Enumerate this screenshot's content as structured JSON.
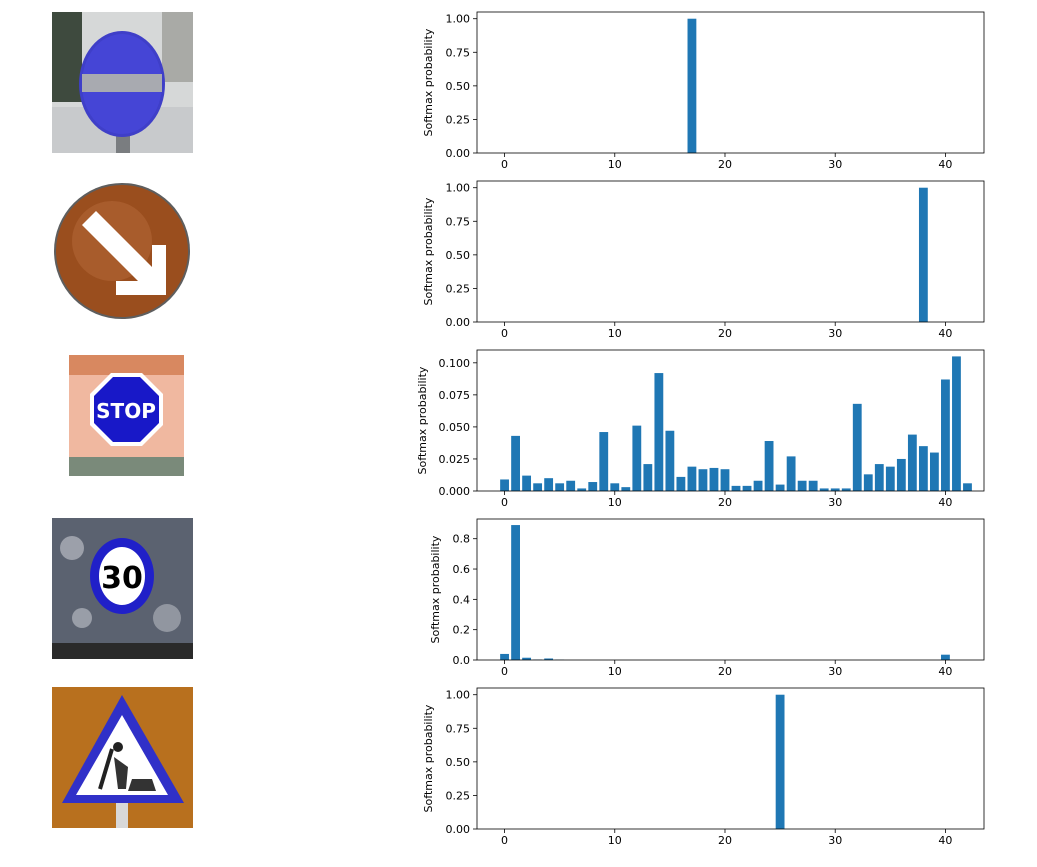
{
  "bar_color": "#1f77b4",
  "thumbnails": [
    {
      "icon": "no-entry-sign-icon"
    },
    {
      "icon": "keep-right-arrow-sign-icon"
    },
    {
      "icon": "stop-sign-icon"
    },
    {
      "icon": "speed-limit-30-sign-icon",
      "text": "30"
    },
    {
      "icon": "road-work-sign-icon"
    }
  ],
  "chart_data": [
    {
      "type": "bar",
      "ylabel": "Softmax probability",
      "xlim": [
        -2.5,
        43.5
      ],
      "xticks": [
        0,
        10,
        20,
        30,
        40
      ],
      "ylim": [
        0,
        1.05
      ],
      "yticks": [
        0,
        0.25,
        0.5,
        0.75,
        1.0
      ],
      "yticklabels": [
        "0.00",
        "0.25",
        "0.50",
        "0.75",
        "1.00"
      ],
      "x": [
        0,
        1,
        2,
        3,
        4,
        5,
        6,
        7,
        8,
        9,
        10,
        11,
        12,
        13,
        14,
        15,
        16,
        17,
        18,
        19,
        20,
        21,
        22,
        23,
        24,
        25,
        26,
        27,
        28,
        29,
        30,
        31,
        32,
        33,
        34,
        35,
        36,
        37,
        38,
        39,
        40,
        41,
        42
      ],
      "values": [
        0,
        0,
        0,
        0,
        0,
        0,
        0,
        0,
        0,
        0,
        0,
        0,
        0,
        0,
        0,
        0,
        0,
        1.0,
        0,
        0,
        0,
        0,
        0,
        0,
        0,
        0,
        0,
        0,
        0,
        0,
        0,
        0,
        0,
        0,
        0,
        0,
        0,
        0,
        0,
        0,
        0,
        0,
        0
      ]
    },
    {
      "type": "bar",
      "ylabel": "Softmax probability",
      "xlim": [
        -2.5,
        43.5
      ],
      "xticks": [
        0,
        10,
        20,
        30,
        40
      ],
      "ylim": [
        0,
        1.05
      ],
      "yticks": [
        0,
        0.25,
        0.5,
        0.75,
        1.0
      ],
      "yticklabels": [
        "0.00",
        "0.25",
        "0.50",
        "0.75",
        "1.00"
      ],
      "x": [
        0,
        1,
        2,
        3,
        4,
        5,
        6,
        7,
        8,
        9,
        10,
        11,
        12,
        13,
        14,
        15,
        16,
        17,
        18,
        19,
        20,
        21,
        22,
        23,
        24,
        25,
        26,
        27,
        28,
        29,
        30,
        31,
        32,
        33,
        34,
        35,
        36,
        37,
        38,
        39,
        40,
        41,
        42
      ],
      "values": [
        0,
        0,
        0,
        0,
        0,
        0,
        0,
        0,
        0,
        0,
        0,
        0,
        0,
        0,
        0,
        0,
        0,
        0,
        0,
        0,
        0,
        0,
        0,
        0,
        0,
        0,
        0,
        0,
        0,
        0,
        0,
        0,
        0,
        0,
        0,
        0,
        0,
        0,
        1.0,
        0,
        0,
        0,
        0
      ]
    },
    {
      "type": "bar",
      "ylabel": "Softmax probability",
      "xlim": [
        -2.5,
        43.5
      ],
      "xticks": [
        0,
        10,
        20,
        30,
        40
      ],
      "ylim": [
        0,
        0.11
      ],
      "yticks": [
        0,
        0.025,
        0.05,
        0.075,
        0.1
      ],
      "yticklabels": [
        "0.000",
        "0.025",
        "0.050",
        "0.075",
        "0.100"
      ],
      "x": [
        0,
        1,
        2,
        3,
        4,
        5,
        6,
        7,
        8,
        9,
        10,
        11,
        12,
        13,
        14,
        15,
        16,
        17,
        18,
        19,
        20,
        21,
        22,
        23,
        24,
        25,
        26,
        27,
        28,
        29,
        30,
        31,
        32,
        33,
        34,
        35,
        36,
        37,
        38,
        39,
        40,
        41,
        42
      ],
      "values": [
        0.009,
        0.043,
        0.012,
        0.006,
        0.01,
        0.006,
        0.008,
        0.002,
        0.007,
        0.046,
        0.006,
        0.003,
        0.051,
        0.021,
        0.092,
        0.047,
        0.011,
        0.019,
        0.017,
        0.018,
        0.017,
        0.004,
        0.004,
        0.008,
        0.039,
        0.005,
        0.027,
        0.008,
        0.008,
        0.002,
        0.002,
        0.002,
        0.068,
        0.013,
        0.021,
        0.019,
        0.025,
        0.044,
        0.035,
        0.03,
        0.087,
        0.105,
        0.006
      ]
    },
    {
      "type": "bar",
      "ylabel": "Softmax probability",
      "xlim": [
        -2.5,
        43.5
      ],
      "xticks": [
        0,
        10,
        20,
        30,
        40
      ],
      "ylim": [
        0,
        0.93
      ],
      "yticks": [
        0,
        0.2,
        0.4,
        0.6,
        0.8
      ],
      "yticklabels": [
        "0.0",
        "0.2",
        "0.4",
        "0.6",
        "0.8"
      ],
      "x": [
        0,
        1,
        2,
        3,
        4,
        5,
        6,
        7,
        8,
        9,
        10,
        11,
        12,
        13,
        14,
        15,
        16,
        17,
        18,
        19,
        20,
        21,
        22,
        23,
        24,
        25,
        26,
        27,
        28,
        29,
        30,
        31,
        32,
        33,
        34,
        35,
        36,
        37,
        38,
        39,
        40,
        41,
        42
      ],
      "values": [
        0.04,
        0.89,
        0.015,
        0.003,
        0.01,
        0.002,
        0,
        0,
        0,
        0,
        0,
        0,
        0,
        0,
        0,
        0,
        0,
        0,
        0,
        0,
        0,
        0,
        0,
        0,
        0,
        0,
        0,
        0,
        0,
        0,
        0,
        0,
        0,
        0,
        0,
        0,
        0,
        0,
        0,
        0,
        0.035,
        0,
        0
      ]
    },
    {
      "type": "bar",
      "ylabel": "Softmax probability",
      "xlim": [
        -2.5,
        43.5
      ],
      "xticks": [
        0,
        10,
        20,
        30,
        40
      ],
      "ylim": [
        0,
        1.05
      ],
      "yticks": [
        0,
        0.25,
        0.5,
        0.75,
        1.0
      ],
      "yticklabels": [
        "0.00",
        "0.25",
        "0.50",
        "0.75",
        "1.00"
      ],
      "x": [
        0,
        1,
        2,
        3,
        4,
        5,
        6,
        7,
        8,
        9,
        10,
        11,
        12,
        13,
        14,
        15,
        16,
        17,
        18,
        19,
        20,
        21,
        22,
        23,
        24,
        25,
        26,
        27,
        28,
        29,
        30,
        31,
        32,
        33,
        34,
        35,
        36,
        37,
        38,
        39,
        40,
        41,
        42
      ],
      "values": [
        0,
        0,
        0,
        0,
        0,
        0,
        0,
        0,
        0,
        0,
        0,
        0,
        0,
        0,
        0,
        0,
        0,
        0,
        0,
        0,
        0,
        0,
        0,
        0,
        0,
        1.0,
        0,
        0,
        0,
        0,
        0,
        0,
        0,
        0,
        0,
        0,
        0,
        0,
        0,
        0,
        0,
        0,
        0
      ]
    }
  ]
}
